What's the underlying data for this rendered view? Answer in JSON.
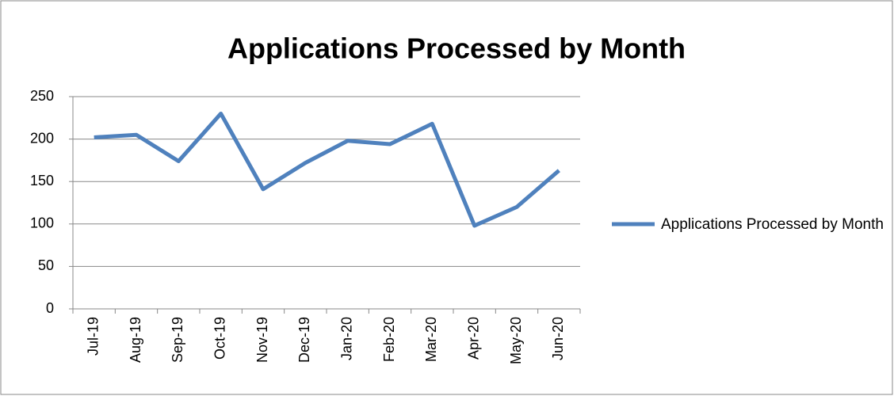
{
  "chart_data": {
    "type": "line",
    "title": "Applications Processed by Month",
    "categories": [
      "Jul-19",
      "Aug-19",
      "Sep-19",
      "Oct-19",
      "Nov-19",
      "Dec-19",
      "Jan-20",
      "Feb-20",
      "Mar-20",
      "Apr-20",
      "May-20",
      "Jun-20"
    ],
    "series": [
      {
        "name": "Applications Processed by Month",
        "color": "#4f81bd",
        "values": [
          202,
          205,
          174,
          230,
          141,
          172,
          198,
          194,
          218,
          98,
          120,
          163
        ]
      }
    ],
    "ylim": [
      0,
      250
    ],
    "yticks": [
      0,
      50,
      100,
      150,
      200,
      250
    ],
    "grid": true,
    "legend": "right"
  }
}
